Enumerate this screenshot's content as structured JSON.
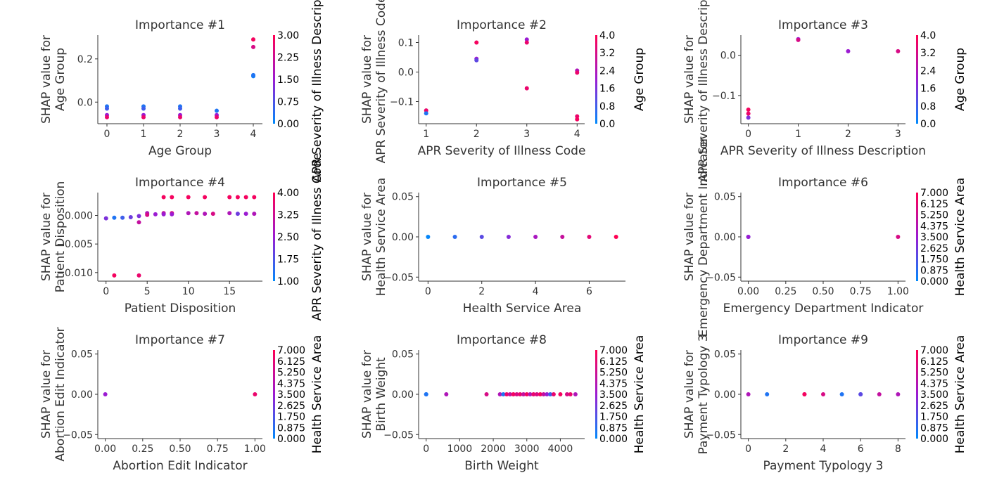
{
  "colors": {
    "low": "#008afb",
    "mid": "#9b1bd2",
    "high": "#ff0052",
    "axis": "#333333",
    "text": "#333333",
    "label": "#000000"
  },
  "chart_data": [
    {
      "type": "scatter",
      "title": "Importance #1",
      "xlabel": "Age Group",
      "ylabel": [
        "SHAP value for",
        "Age Group"
      ],
      "xlim": [
        -0.25,
        4.25
      ],
      "ylim": [
        -0.1,
        0.31
      ],
      "xticks": [
        0,
        1,
        2,
        3,
        4
      ],
      "xticklabels": [
        "0",
        "1",
        "2",
        "3",
        "4"
      ],
      "yticks": [
        0.0,
        0.2
      ],
      "yticklabels": [
        "0.0",
        "0.2"
      ],
      "colorbar": {
        "label": "APR Severity of Illness Description",
        "ticks": [
          "0.00",
          "0.75",
          "1.50",
          "2.25",
          "3.00"
        ]
      },
      "points": [
        [
          0,
          -0.02,
          0.1
        ],
        [
          0,
          -0.03,
          0.2
        ],
        [
          0,
          -0.06,
          0.5
        ],
        [
          0,
          -0.07,
          0.9
        ],
        [
          1,
          -0.02,
          0.1
        ],
        [
          1,
          -0.03,
          0.2
        ],
        [
          1,
          -0.06,
          0.5
        ],
        [
          1,
          -0.07,
          0.9
        ],
        [
          2,
          -0.02,
          0.1
        ],
        [
          2,
          -0.03,
          0.2
        ],
        [
          2,
          -0.06,
          0.5
        ],
        [
          2,
          -0.07,
          0.9
        ],
        [
          3,
          -0.04,
          0.1
        ],
        [
          3,
          -0.06,
          0.5
        ],
        [
          3,
          -0.07,
          0.9
        ],
        [
          4,
          0.12,
          0.05
        ],
        [
          4,
          0.125,
          0.1
        ],
        [
          4,
          0.255,
          0.8
        ],
        [
          4,
          0.29,
          0.95
        ]
      ]
    },
    {
      "type": "scatter",
      "title": "Importance #2",
      "xlabel": "APR Severity of Illness Code",
      "ylabel": [
        "SHAP value for",
        "APR Severity of Illness Code"
      ],
      "xlim": [
        0.85,
        4.15
      ],
      "ylim": [
        -0.175,
        0.125
      ],
      "xticks": [
        1,
        2,
        3,
        4
      ],
      "xticklabels": [
        "1",
        "2",
        "3",
        "4"
      ],
      "yticks": [
        -0.1,
        0.0,
        0.1
      ],
      "yticklabels": [
        "−0.1",
        "0.0",
        "0.1"
      ],
      "colorbar": {
        "label": "Age Group",
        "ticks": [
          "0.0",
          "0.8",
          "1.6",
          "2.4",
          "3.2",
          "4.0"
        ]
      },
      "points": [
        [
          1,
          -0.13,
          0.9
        ],
        [
          1,
          -0.14,
          0.1
        ],
        [
          2,
          0.1,
          0.95
        ],
        [
          2,
          0.045,
          0.5
        ],
        [
          2,
          0.04,
          0.3
        ],
        [
          3,
          0.11,
          0.5
        ],
        [
          3,
          0.1,
          0.9
        ],
        [
          3,
          -0.055,
          0.9
        ],
        [
          4,
          0.005,
          0.6
        ],
        [
          4,
          -0.002,
          0.9
        ],
        [
          4,
          -0.15,
          0.9
        ],
        [
          4,
          -0.16,
          0.95
        ]
      ]
    },
    {
      "type": "scatter",
      "title": "Importance #3",
      "xlabel": "APR Severity of Illness Description",
      "ylabel": [
        "SHAP value for",
        "APR Severity of Illness Description"
      ],
      "xlim": [
        -0.15,
        3.15
      ],
      "ylim": [
        -0.17,
        0.05
      ],
      "xticks": [
        0,
        1,
        2,
        3
      ],
      "xticklabels": [
        "0",
        "1",
        "2",
        "3"
      ],
      "yticks": [
        -0.1,
        0.0
      ],
      "yticklabels": [
        "−0.1",
        "0.0"
      ],
      "colorbar": {
        "label": "Age Group",
        "ticks": [
          "0.0",
          "0.8",
          "1.6",
          "2.4",
          "3.2",
          "4.0"
        ]
      },
      "points": [
        [
          0,
          -0.135,
          0.95
        ],
        [
          0,
          -0.145,
          0.9
        ],
        [
          0,
          -0.155,
          0.4
        ],
        [
          1,
          0.04,
          0.5
        ],
        [
          1,
          0.038,
          0.8
        ],
        [
          2,
          0.01,
          0.5
        ],
        [
          3,
          0.01,
          0.8
        ]
      ]
    },
    {
      "type": "scatter",
      "title": "Importance #4",
      "xlabel": "Patient Disposition",
      "ylabel": [
        "SHAP value for",
        "Patient Disposition"
      ],
      "xlim": [
        -1,
        19
      ],
      "ylim": [
        -0.0115,
        0.004
      ],
      "xticks": [
        0,
        5,
        10,
        15
      ],
      "xticklabels": [
        "0",
        "5",
        "10",
        "15"
      ],
      "yticks": [
        -0.01,
        -0.005,
        0.0
      ],
      "yticklabels": [
        "−0.010",
        "−0.005",
        "0.000"
      ],
      "colorbar": {
        "label": "APR Severity of Illness Code",
        "ticks": [
          "1.00",
          "1.75",
          "2.50",
          "3.25",
          "4.00"
        ]
      },
      "points": [
        [
          0,
          -0.0005,
          0.4
        ],
        [
          1,
          -0.0004,
          0.1
        ],
        [
          2,
          -0.0004,
          0.2
        ],
        [
          3,
          -0.0003,
          0.35
        ],
        [
          4,
          -0.0001,
          0.4
        ],
        [
          4,
          -0.0012,
          0.7
        ],
        [
          5,
          0.0004,
          0.6
        ],
        [
          5,
          0.0001,
          0.8
        ],
        [
          6,
          0.0002,
          0.5
        ],
        [
          7,
          0.0032,
          0.95
        ],
        [
          7,
          0.0004,
          0.7
        ],
        [
          7,
          0.0002,
          0.5
        ],
        [
          8,
          0.0032,
          0.95
        ],
        [
          8,
          0.0004,
          0.8
        ],
        [
          8,
          0.0002,
          0.5
        ],
        [
          10,
          0.0032,
          0.95
        ],
        [
          10,
          0.0004,
          0.6
        ],
        [
          11,
          0.0004,
          0.7
        ],
        [
          12,
          0.0032,
          0.95
        ],
        [
          12,
          0.0003,
          0.6
        ],
        [
          13,
          0.0003,
          0.8
        ],
        [
          15,
          0.0032,
          0.95
        ],
        [
          15,
          0.0004,
          0.6
        ],
        [
          16,
          0.0032,
          0.95
        ],
        [
          16,
          0.0003,
          0.35
        ],
        [
          17,
          0.0032,
          0.95
        ],
        [
          17,
          0.0003,
          0.5
        ],
        [
          18,
          0.0032,
          0.95
        ],
        [
          18,
          0.0003,
          0.6
        ],
        [
          1,
          -0.0105,
          0.95
        ],
        [
          4,
          -0.0105,
          0.9
        ]
      ]
    },
    {
      "type": "scatter",
      "title": "Importance #5",
      "xlabel": "Health Service Area",
      "ylabel": [
        "SHAP value for",
        "Health Service Area"
      ],
      "xlim": [
        -0.35,
        7.35
      ],
      "ylim": [
        -0.055,
        0.055
      ],
      "xticks": [
        0,
        2,
        4,
        6
      ],
      "xticklabels": [
        "0",
        "2",
        "4",
        "6"
      ],
      "yticks": [
        -0.05,
        0.0,
        0.05
      ],
      "yticklabels": [
        "−0.05",
        "0.00",
        "0.05"
      ],
      "colorbar": null,
      "points": [
        [
          0,
          0,
          0.02
        ],
        [
          1,
          0,
          0.14
        ],
        [
          2,
          0,
          0.29
        ],
        [
          3,
          0,
          0.43
        ],
        [
          4,
          0,
          0.57
        ],
        [
          5,
          0,
          0.71
        ],
        [
          6,
          0,
          0.86
        ],
        [
          7,
          0,
          1.0
        ]
      ]
    },
    {
      "type": "scatter",
      "title": "Importance #6",
      "xlabel": "Emergency Department Indicator",
      "ylabel": [
        "SHAP value for",
        "Emergency Department Indicator"
      ],
      "xlim": [
        -0.05,
        1.05
      ],
      "ylim": [
        -0.055,
        0.055
      ],
      "xticks": [
        0,
        0.25,
        0.5,
        0.75,
        1.0
      ],
      "xticklabels": [
        "0.00",
        "0.25",
        "0.50",
        "0.75",
        "1.00"
      ],
      "yticks": [
        -0.05,
        0.0,
        0.05
      ],
      "yticklabels": [
        "−0.05",
        "0.00",
        "0.05"
      ],
      "colorbar": {
        "label": "Health Service Area",
        "ticks": [
          "0.000",
          "0.875",
          "1.750",
          "2.625",
          "3.500",
          "4.375",
          "5.250",
          "6.125",
          "7.000"
        ]
      },
      "points": [
        [
          0,
          0,
          0.1
        ],
        [
          0,
          0,
          0.5
        ],
        [
          1,
          0,
          0.8
        ]
      ]
    },
    {
      "type": "scatter",
      "title": "Importance #7",
      "xlabel": "Abortion Edit Indicator",
      "ylabel": [
        "SHAP value for",
        "Abortion Edit Indicator"
      ],
      "xlim": [
        -0.05,
        1.05
      ],
      "ylim": [
        -0.055,
        0.055
      ],
      "xticks": [
        0,
        0.25,
        0.5,
        0.75,
        1.0
      ],
      "xticklabels": [
        "0.00",
        "0.25",
        "0.50",
        "0.75",
        "1.00"
      ],
      "yticks": [
        -0.05,
        0.0,
        0.05
      ],
      "yticklabels": [
        "−0.05",
        "0.00",
        "0.05"
      ],
      "colorbar": {
        "label": "Health Service Area",
        "ticks": [
          "0.000",
          "0.875",
          "1.750",
          "2.625",
          "3.500",
          "4.375",
          "5.250",
          "6.125",
          "7.000"
        ]
      },
      "points": [
        [
          0,
          0,
          0.5
        ],
        [
          1,
          0,
          0.9
        ]
      ]
    },
    {
      "type": "scatter",
      "title": "Importance #8",
      "xlabel": "Birth Weight",
      "ylabel": [
        "SHAP value for",
        "Birth Weight"
      ],
      "xlim": [
        -225,
        4725
      ],
      "ylim": [
        -0.055,
        0.055
      ],
      "xticks": [
        0,
        1000,
        2000,
        3000,
        4000
      ],
      "xticklabels": [
        "0",
        "1000",
        "2000",
        "3000",
        "4000"
      ],
      "yticks": [
        -0.05,
        0.0,
        0.05
      ],
      "yticklabels": [
        "−0.05",
        "0.00",
        "0.05"
      ],
      "colorbar": {
        "label": "Health Service Area",
        "ticks": [
          "0.000",
          "0.875",
          "1.750",
          "2.625",
          "3.500",
          "4.375",
          "5.250",
          "6.125",
          "7.000"
        ]
      },
      "points": [
        [
          0,
          0,
          0.05
        ],
        [
          0,
          0,
          0.1
        ],
        [
          600,
          0,
          0.6
        ],
        [
          1800,
          0,
          0.8
        ],
        [
          2200,
          0,
          0.6
        ],
        [
          2300,
          0,
          0.1
        ],
        [
          2400,
          0,
          0.9
        ],
        [
          2500,
          0,
          0.7
        ],
        [
          2600,
          0,
          0.95
        ],
        [
          2700,
          0,
          0.8
        ],
        [
          2800,
          0,
          0.9
        ],
        [
          2900,
          0,
          0.7
        ],
        [
          3000,
          0,
          0.95
        ],
        [
          3100,
          0,
          0.6
        ],
        [
          3200,
          0,
          0.9
        ],
        [
          3300,
          0,
          0.8
        ],
        [
          3400,
          0,
          0.95
        ],
        [
          3500,
          0,
          0.7
        ],
        [
          3600,
          0,
          0.5
        ],
        [
          3700,
          0,
          0.2
        ],
        [
          3800,
          0,
          0.9
        ],
        [
          4000,
          0,
          0.95
        ],
        [
          4200,
          0,
          0.8
        ],
        [
          4300,
          0,
          0.9
        ],
        [
          4450,
          0,
          0.6
        ]
      ]
    },
    {
      "type": "scatter",
      "title": "Importance #9",
      "xlabel": "Payment Typology 3",
      "ylabel": [
        "SHAP value for",
        "Payment Typology 3"
      ],
      "xlim": [
        -0.4,
        8.4
      ],
      "ylim": [
        -0.055,
        0.055
      ],
      "xticks": [
        0,
        2,
        4,
        6,
        8
      ],
      "xticklabels": [
        "0",
        "2",
        "4",
        "6",
        "8"
      ],
      "yticks": [
        -0.05,
        0.0,
        0.05
      ],
      "yticklabels": [
        "−0.05",
        "0.00",
        "0.05"
      ],
      "colorbar": {
        "label": "Health Service Area",
        "ticks": [
          "0.000",
          "0.875",
          "1.750",
          "2.625",
          "3.500",
          "4.375",
          "5.250",
          "6.125",
          "7.000"
        ]
      },
      "points": [
        [
          0,
          0,
          0.6
        ],
        [
          1,
          0,
          0.1
        ],
        [
          3,
          0,
          0.8
        ],
        [
          3,
          0,
          0.95
        ],
        [
          4,
          0,
          0.8
        ],
        [
          5,
          0,
          0.1
        ],
        [
          6,
          0,
          0.1
        ],
        [
          6,
          0,
          0.3
        ],
        [
          7,
          0,
          0.7
        ],
        [
          8,
          0,
          0.6
        ]
      ]
    }
  ]
}
